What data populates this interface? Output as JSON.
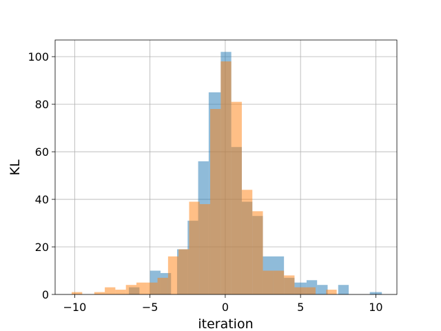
{
  "chart_data": {
    "type": "bar",
    "title": "",
    "xlabel": "iteration",
    "ylabel": "KL",
    "xlim": [
      -11.3,
      11.4
    ],
    "ylim": [
      0,
      107
    ],
    "grid": true,
    "xticks": [
      -10,
      -5,
      0,
      5,
      10
    ],
    "xtick_labels": [
      "−10",
      "−5",
      "0",
      "5",
      "10"
    ],
    "yticks": [
      0,
      20,
      40,
      60,
      80,
      100
    ],
    "ytick_labels": [
      "0",
      "20",
      "40",
      "60",
      "80",
      "100"
    ],
    "series": [
      {
        "color": "#1f77b4",
        "opacity": 0.5,
        "bins": [
          {
            "x0": -6.4,
            "x1": -5.7,
            "value": 3
          },
          {
            "x0": -5.0,
            "x1": -4.3,
            "value": 10
          },
          {
            "x0": -4.3,
            "x1": -3.6,
            "value": 9
          },
          {
            "x0": -3.2,
            "x1": -2.5,
            "value": 19
          },
          {
            "x0": -2.5,
            "x1": -1.8,
            "value": 31
          },
          {
            "x0": -1.8,
            "x1": -1.1,
            "value": 56
          },
          {
            "x0": -1.1,
            "x1": -0.3,
            "value": 85
          },
          {
            "x0": -0.3,
            "x1": 0.4,
            "value": 102
          },
          {
            "x0": 0.4,
            "x1": 1.1,
            "value": 62
          },
          {
            "x0": 1.1,
            "x1": 1.8,
            "value": 39
          },
          {
            "x0": 1.8,
            "x1": 2.5,
            "value": 33
          },
          {
            "x0": 2.5,
            "x1": 3.9,
            "value": 16
          },
          {
            "x0": 3.9,
            "x1": 4.6,
            "value": 7
          },
          {
            "x0": 4.6,
            "x1": 5.4,
            "value": 5
          },
          {
            "x0": 5.4,
            "x1": 6.1,
            "value": 6
          },
          {
            "x0": 6.1,
            "x1": 6.8,
            "value": 4
          },
          {
            "x0": 7.5,
            "x1": 8.2,
            "value": 4
          },
          {
            "x0": 9.6,
            "x1": 10.4,
            "value": 1
          }
        ]
      },
      {
        "color": "#ff7f0e",
        "opacity": 0.5,
        "bins": [
          {
            "x0": -10.2,
            "x1": -9.5,
            "value": 1
          },
          {
            "x0": -8.7,
            "x1": -8.0,
            "value": 1
          },
          {
            "x0": -8.0,
            "x1": -7.3,
            "value": 3
          },
          {
            "x0": -7.3,
            "x1": -6.6,
            "value": 2
          },
          {
            "x0": -6.6,
            "x1": -5.9,
            "value": 4
          },
          {
            "x0": -5.9,
            "x1": -5.2,
            "value": 5
          },
          {
            "x0": -5.2,
            "x1": -4.5,
            "value": 5
          },
          {
            "x0": -4.5,
            "x1": -3.8,
            "value": 7
          },
          {
            "x0": -3.8,
            "x1": -3.1,
            "value": 16
          },
          {
            "x0": -3.1,
            "x1": -2.4,
            "value": 19
          },
          {
            "x0": -2.4,
            "x1": -1.7,
            "value": 39
          },
          {
            "x0": -1.7,
            "x1": -1.0,
            "value": 38
          },
          {
            "x0": -1.0,
            "x1": -0.3,
            "value": 78
          },
          {
            "x0": -0.3,
            "x1": 0.4,
            "value": 98
          },
          {
            "x0": 0.4,
            "x1": 1.1,
            "value": 81
          },
          {
            "x0": 1.1,
            "x1": 1.8,
            "value": 44
          },
          {
            "x0": 1.8,
            "x1": 2.5,
            "value": 35
          },
          {
            "x0": 2.5,
            "x1": 3.2,
            "value": 10
          },
          {
            "x0": 3.2,
            "x1": 3.9,
            "value": 10
          },
          {
            "x0": 3.9,
            "x1": 4.6,
            "value": 8
          },
          {
            "x0": 4.6,
            "x1": 5.3,
            "value": 3
          },
          {
            "x0": 5.3,
            "x1": 6.0,
            "value": 3
          },
          {
            "x0": 6.7,
            "x1": 7.4,
            "value": 2
          }
        ]
      }
    ]
  }
}
